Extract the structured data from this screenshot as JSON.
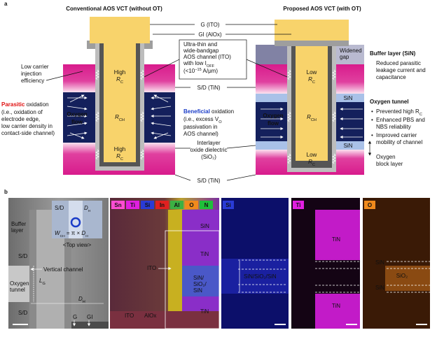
{
  "panel_a": {
    "label": "a",
    "left_title": "Conventional AOS VCT (without OT)",
    "right_title": "Proposed AOS VCT (with OT)",
    "gate": "G (ITO)",
    "gi": "GI (AlOx)",
    "channel": [
      "Ultra-thin and",
      "wide-bandgap",
      "AOS channel (ITO)"
    ],
    "channel_ioff": {
      "text": "with low I",
      "sub": "OFF"
    },
    "channel_limit": {
      "pre": "(<10",
      "sup": "−15",
      "post": " A/μm)"
    },
    "sd_top": "S/D (TiN)",
    "beneficial": {
      "bold": "Beneficial",
      "rest": " oxidation"
    },
    "beneficial_vo": {
      "text": "(i.e., excess V",
      "sub": "O"
    },
    "beneficial_lines": [
      "passivation in",
      "AOS channel)"
    ],
    "interlayer": [
      "Interlayer",
      "oxide dielectric",
      "(SiO₂)"
    ],
    "sd_bottom": "S/D (TiN)",
    "low_injection": [
      "Low carrier",
      "injection",
      "efficiency"
    ],
    "parasitic": {
      "bold": "Parasitic",
      "rest": " oxidation"
    },
    "parasitic_lines": [
      "(i.e., oxidation of",
      "electrode edge,",
      "low carrier density in",
      "contact-side channel)"
    ],
    "left_device": {
      "top": {
        "word": "High",
        "symbol": "R",
        "sub": "C"
      },
      "bottom": {
        "word": "High",
        "symbol": "R",
        "sub": "C"
      },
      "channel": {
        "symbol": "R",
        "sub": "CH"
      },
      "flow": [
        "Oxygen",
        "flow"
      ]
    },
    "right_device": {
      "top": {
        "word": "Low",
        "symbol": "R",
        "sub": "C"
      },
      "bottom": {
        "word": "Low",
        "symbol": "R",
        "sub": "C"
      },
      "channel": {
        "symbol": "R",
        "sub": "CH"
      },
      "flow": [
        "Oxygen",
        "flow"
      ],
      "sin_top": "SiN",
      "sin_bottom": "SiN"
    },
    "widened_gap": [
      "Widened",
      "gap"
    ],
    "buffer_title": "Buffer layer (SiN)",
    "buffer_bullet": [
      "Reduced parasitic",
      "leakage current and",
      "capacitance"
    ],
    "tunnel_title": "Oxygen tunnel",
    "tunnel_bullet_rc": {
      "text": "Prevented high R",
      "sub": "C"
    },
    "tunnel_bullets": [
      [
        "Enhanced PBS and",
        "NBS reliability"
      ],
      [
        "Improved carrier",
        "mobility of channel"
      ]
    ],
    "block_layer": [
      "Oxygen",
      "block layer"
    ]
  },
  "panel_b": {
    "label": "b",
    "tem": {
      "buffer": [
        "Buffer",
        "layer"
      ],
      "sd_top": "S/D",
      "vertical": "Vertical channel",
      "tunnel": [
        "Oxygen",
        "tunnel"
      ],
      "sd_bottom": "S/D",
      "lg": {
        "symbol": "L",
        "sub": "G"
      },
      "dh": {
        "symbol": "D",
        "sub": "H"
      },
      "g": "G",
      "gi": "GI",
      "inset": {
        "sd": "S/D",
        "dh": {
          "symbol": "D",
          "sub": "H"
        },
        "wch": {
          "symbol": "W",
          "sub": "CH",
          "mid": " = π × ",
          "symbol2": "D",
          "sub2": "H"
        },
        "view": "<Top view>"
      }
    },
    "eds": {
      "elements": [
        {
          "name": "Sn",
          "color": "#ff4dd2"
        },
        {
          "name": "Ti",
          "color": "#e01fe0"
        },
        {
          "name": "Si",
          "color": "#2a3bd6"
        },
        {
          "name": "In",
          "color": "#e02020"
        },
        {
          "name": "Al",
          "color": "#3cb043"
        },
        {
          "name": "O",
          "color": "#f08a1c"
        },
        {
          "name": "N",
          "color": "#1fbf3a"
        }
      ],
      "labels": {
        "sin": "SiN",
        "tin_top": "TiN",
        "ito": "ITO",
        "stack": [
          "SiN/",
          "SiO₂/",
          "SiN"
        ],
        "tin_bottom": "TiN",
        "ito_bottom": "ITO",
        "alox": "AlOx"
      }
    },
    "si_map": {
      "element": "Si",
      "stack": "SiN/SiO₂/SiN"
    },
    "ti_map": {
      "element": "Ti",
      "tin_top": "TiN",
      "tin_bottom": "TiN"
    },
    "o_map": {
      "element": "O",
      "sin_top": "SiN",
      "sio2": "SiO₂",
      "sin_bottom": "SiN"
    }
  }
}
